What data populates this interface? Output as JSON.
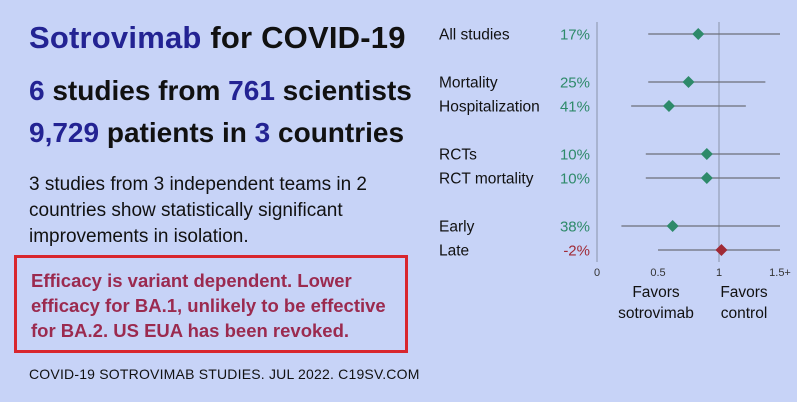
{
  "header": {
    "title_drug": "Sotrovimab",
    "title_rest": " for COVID-19",
    "studies_count": "6",
    "studies_text": " studies from ",
    "scientists_count": "761",
    "scientists_text": " scientists",
    "patients_count": "9,729",
    "patients_text": " patients in ",
    "countries_count": "3",
    "countries_text": " countries"
  },
  "description": "3 studies from 3 independent teams in 2 countries show statistically significant improvements in isolation.",
  "alert_text": "Efficacy is variant dependent. Lower efficacy for BA.1, unlikely to be effective for BA.2. US EUA has been revoked.",
  "footer": "COVID-19 SOTROVIMAB STUDIES. JUL 2022. C19SV.COM",
  "colors": {
    "highlight": "#232393",
    "positive": "#2e8a6a",
    "negative": "#a02a36",
    "alert_border": "#d8262e",
    "alert_text": "#9b2a4f",
    "background": "#c7d3f7"
  },
  "chart_data": {
    "type": "scatter",
    "subtype": "forest-plot",
    "xlim": [
      0,
      1.5
    ],
    "x_ticks": [
      {
        "value": 0,
        "label": "0"
      },
      {
        "value": 0.5,
        "label": "0.5"
      },
      {
        "value": 1,
        "label": "1"
      },
      {
        "value": 1.5,
        "label": "1.5+"
      }
    ],
    "reference_line": 1,
    "favors_left": [
      "Favors",
      "sotrovimab"
    ],
    "favors_right": [
      "Favors",
      "control"
    ],
    "rows": [
      {
        "label": "All studies",
        "improvement": "17%",
        "estimate": 0.83,
        "ci_low": 0.42,
        "ci_high": 1.5,
        "positive": true
      },
      {
        "label": "Mortality",
        "improvement": "25%",
        "estimate": 0.75,
        "ci_low": 0.42,
        "ci_high": 1.38,
        "positive": true
      },
      {
        "label": "Hospitalization",
        "improvement": "41%",
        "estimate": 0.59,
        "ci_low": 0.28,
        "ci_high": 1.22,
        "positive": true
      },
      {
        "label": "RCTs",
        "improvement": "10%",
        "estimate": 0.9,
        "ci_low": 0.4,
        "ci_high": 1.5,
        "positive": true
      },
      {
        "label": "RCT mortality",
        "improvement": "10%",
        "estimate": 0.9,
        "ci_low": 0.4,
        "ci_high": 1.5,
        "positive": true
      },
      {
        "label": "Early",
        "improvement": "38%",
        "estimate": 0.62,
        "ci_low": 0.2,
        "ci_high": 1.5,
        "positive": true
      },
      {
        "label": "Late",
        "improvement": "-2%",
        "estimate": 1.02,
        "ci_low": 0.5,
        "ci_high": 1.5,
        "positive": false
      }
    ]
  }
}
